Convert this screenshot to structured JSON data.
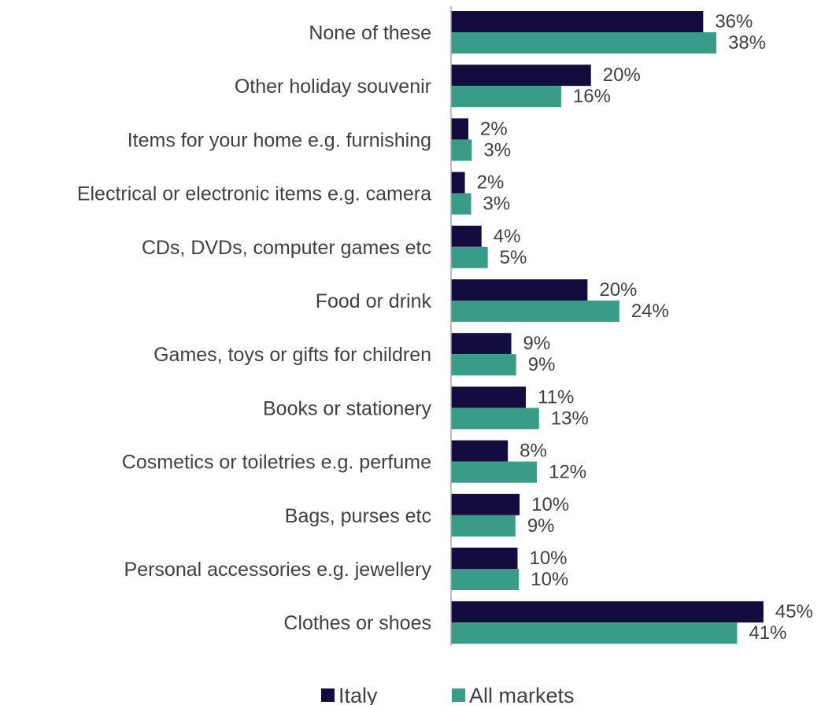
{
  "chart_data": {
    "type": "bar",
    "orientation": "horizontal",
    "categories": [
      "None of these",
      "Other holiday souvenir",
      "Items for your home e.g. furnishing",
      "Electrical or electronic items e.g. camera",
      "CDs, DVDs, computer games etc",
      "Food or drink",
      "Games, toys or gifts for children",
      "Books or stationery",
      "Cosmetics or toiletries e.g. perfume",
      "Bags, purses etc",
      "Personal accessories e.g. jewellery",
      "Clothes or shoes"
    ],
    "series": [
      {
        "name": "Italy",
        "color": "#130c3f",
        "values": [
          36,
          20,
          2,
          2,
          4,
          20,
          9,
          11,
          8,
          10,
          10,
          45
        ],
        "labels": [
          "36%",
          "20%",
          "2%",
          "2%",
          "4%",
          "20%",
          "9%",
          "11%",
          "8%",
          "10%",
          "10%",
          "45%"
        ],
        "exact_values": [
          36.4,
          20.2,
          2.5,
          2.0,
          4.4,
          19.7,
          8.7,
          10.8,
          8.2,
          9.9,
          9.6,
          45.1
        ]
      },
      {
        "name": "All markets",
        "color": "#389c88",
        "values": [
          38,
          16,
          3,
          3,
          5,
          24,
          9,
          13,
          12,
          9,
          10,
          41
        ],
        "labels": [
          "38%",
          "16%",
          "3%",
          "3%",
          "5%",
          "24%",
          "9%",
          "13%",
          "12%",
          "9%",
          "10%",
          "41%"
        ],
        "exact_values": [
          38.3,
          15.9,
          3.0,
          2.9,
          5.3,
          24.3,
          9.4,
          12.7,
          12.4,
          9.3,
          9.8,
          41.3
        ]
      }
    ],
    "xlim": [
      0,
      50
    ],
    "grid": false,
    "legend_position": "bottom"
  }
}
